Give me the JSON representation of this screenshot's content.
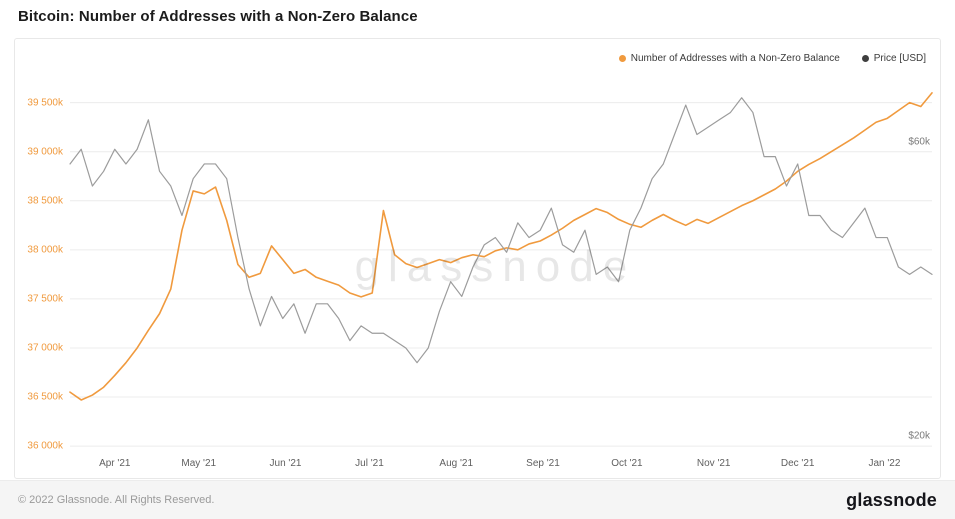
{
  "page": {
    "title": "Bitcoin: Number of Addresses with a Non-Zero Balance",
    "watermark": "glassnode",
    "footer": {
      "copyright": "© 2022 Glassnode. All Rights Reserved.",
      "logo_text": "glassnode"
    }
  },
  "legend": [
    {
      "label": "Number of Addresses with a Non-Zero Balance",
      "color": "#f09a3e"
    },
    {
      "label": "Price [USD]",
      "color": "#3f3f3f"
    }
  ],
  "chart_data": {
    "type": "line",
    "title": "Bitcoin: Number of Addresses with a Non-Zero Balance",
    "grid": "horizontal",
    "legend_position": "top-right",
    "x_unit": "days since 2021-03-16",
    "xlim": [
      0,
      308
    ],
    "x_ticks": [
      {
        "label": "Apr '21",
        "x": 16
      },
      {
        "label": "May '21",
        "x": 46
      },
      {
        "label": "Jun '21",
        "x": 77
      },
      {
        "label": "Jul '21",
        "x": 107
      },
      {
        "label": "Aug '21",
        "x": 138
      },
      {
        "label": "Sep '21",
        "x": 169
      },
      {
        "label": "Oct '21",
        "x": 199
      },
      {
        "label": "Nov '21",
        "x": 230
      },
      {
        "label": "Dec '21",
        "x": 260
      },
      {
        "label": "Jan '22",
        "x": 291
      }
    ],
    "y_axis_left": {
      "color": "#f09a3e",
      "ylim": [
        35950,
        39700
      ],
      "ticks": [
        {
          "label": "39 500k",
          "value": 39500
        },
        {
          "label": "39 000k",
          "value": 39000
        },
        {
          "label": "38 500k",
          "value": 38500
        },
        {
          "label": "38 000k",
          "value": 38000
        },
        {
          "label": "37 500k",
          "value": 37500
        },
        {
          "label": "37 000k",
          "value": 37000
        },
        {
          "label": "36 500k",
          "value": 36500
        },
        {
          "label": "36 000k",
          "value": 36000
        }
      ]
    },
    "y_axis_right": {
      "color": "#7a7a7a",
      "ylim": [
        18,
        68
      ],
      "ticks": [
        {
          "label": "$60k",
          "value": 60
        },
        {
          "label": "$20k",
          "value": 20
        }
      ]
    },
    "x": [
      0,
      4,
      8,
      12,
      16,
      20,
      24,
      28,
      32,
      36,
      40,
      44,
      48,
      52,
      56,
      60,
      64,
      68,
      72,
      76,
      80,
      84,
      88,
      92,
      96,
      100,
      104,
      108,
      112,
      116,
      120,
      124,
      128,
      132,
      136,
      140,
      144,
      148,
      152,
      156,
      160,
      164,
      168,
      172,
      176,
      180,
      184,
      188,
      192,
      196,
      200,
      204,
      208,
      212,
      216,
      220,
      224,
      228,
      232,
      236,
      240,
      244,
      248,
      252,
      256,
      260,
      264,
      268,
      272,
      276,
      280,
      284,
      288,
      292,
      296,
      300,
      304,
      308
    ],
    "series": [
      {
        "name": "Number of Addresses with a Non-Zero Balance",
        "axis": "left",
        "color": "#f09a3e",
        "stroke_width": 1.6,
        "unit": "thousands of addresses",
        "values": [
          36550,
          36470,
          36520,
          36600,
          36720,
          36850,
          37000,
          37180,
          37350,
          37600,
          38200,
          38600,
          38570,
          38640,
          38300,
          37850,
          37720,
          37760,
          38040,
          37900,
          37760,
          37800,
          37720,
          37680,
          37640,
          37560,
          37520,
          37560,
          38400,
          37950,
          37860,
          37820,
          37860,
          37900,
          37870,
          37920,
          37950,
          37930,
          37990,
          38020,
          38000,
          38060,
          38090,
          38150,
          38220,
          38300,
          38360,
          38420,
          38380,
          38310,
          38260,
          38230,
          38300,
          38360,
          38300,
          38250,
          38310,
          38270,
          38330,
          38390,
          38450,
          38500,
          38560,
          38620,
          38700,
          38800,
          38870,
          38930,
          39000,
          39070,
          39140,
          39220,
          39300,
          39340,
          39420,
          39500,
          39460,
          39600
        ]
      },
      {
        "name": "Price [USD]",
        "axis": "right",
        "color": "#9c9c9c",
        "stroke_width": 1.2,
        "unit": "USD thousands",
        "values": [
          57,
          59,
          54,
          56,
          59,
          57,
          59,
          63,
          56,
          54,
          50,
          55,
          57,
          57,
          55,
          47,
          40,
          35,
          39,
          36,
          38,
          34,
          38,
          38,
          36,
          33,
          35,
          34,
          34,
          33,
          32,
          30,
          32,
          37,
          41,
          39,
          43,
          46,
          47,
          45,
          49,
          47,
          48,
          51,
          46,
          45,
          48,
          42,
          43,
          41,
          48,
          51,
          55,
          57,
          61,
          65,
          61,
          62,
          63,
          64,
          66,
          64,
          58,
          58,
          54,
          57,
          50,
          50,
          48,
          47,
          49,
          51,
          47,
          47,
          43,
          42,
          43,
          42
        ]
      }
    ]
  }
}
